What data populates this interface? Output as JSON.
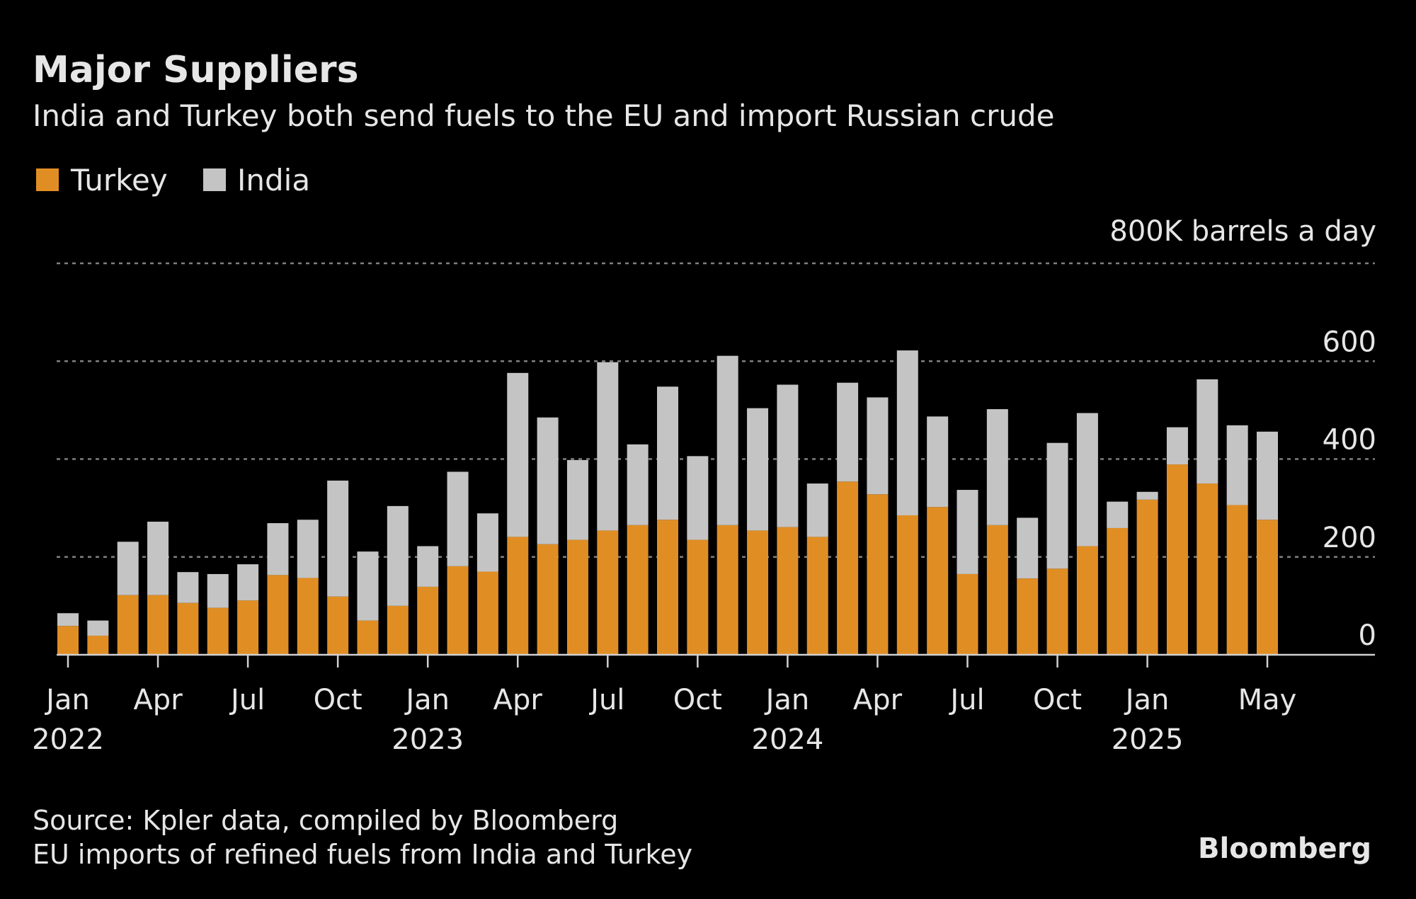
{
  "chart_data": {
    "type": "bar",
    "stacked": true,
    "title": "Major Suppliers",
    "subtitle": "India and Turkey both send fuels to the EU and import Russian crude",
    "ylabel": "800K barrels a day",
    "ylim": [
      0,
      800
    ],
    "yticks": [
      0,
      200,
      400,
      600
    ],
    "grid": true,
    "legend_placement": "top-left",
    "categories": [
      "2022-01",
      "2022-02",
      "2022-03",
      "2022-04",
      "2022-05",
      "2022-06",
      "2022-07",
      "2022-08",
      "2022-09",
      "2022-10",
      "2022-11",
      "2022-12",
      "2023-01",
      "2023-02",
      "2023-03",
      "2023-04",
      "2023-05",
      "2023-06",
      "2023-07",
      "2023-08",
      "2023-09",
      "2023-10",
      "2023-11",
      "2023-12",
      "2024-01",
      "2024-02",
      "2024-03",
      "2024-04",
      "2024-05",
      "2024-06",
      "2024-07",
      "2024-08",
      "2024-09",
      "2024-10",
      "2024-11",
      "2024-12",
      "2025-01",
      "2025-02",
      "2025-03",
      "2025-04",
      "2025-05"
    ],
    "x_tick_labels": [
      {
        "index": 0,
        "month": "Jan",
        "year": "2022"
      },
      {
        "index": 3,
        "month": "Apr"
      },
      {
        "index": 6,
        "month": "Jul"
      },
      {
        "index": 9,
        "month": "Oct"
      },
      {
        "index": 12,
        "month": "Jan",
        "year": "2023"
      },
      {
        "index": 15,
        "month": "Apr"
      },
      {
        "index": 18,
        "month": "Jul"
      },
      {
        "index": 21,
        "month": "Oct"
      },
      {
        "index": 24,
        "month": "Jan",
        "year": "2024"
      },
      {
        "index": 27,
        "month": "Apr"
      },
      {
        "index": 30,
        "month": "Jul"
      },
      {
        "index": 33,
        "month": "Oct"
      },
      {
        "index": 36,
        "month": "Jan",
        "year": "2025"
      },
      {
        "index": 40,
        "month": "May"
      }
    ],
    "series": [
      {
        "name": "Turkey",
        "color": "#e08e24",
        "values": [
          59,
          39,
          122,
          122,
          106,
          96,
          111,
          163,
          157,
          119,
          70,
          100,
          139,
          181,
          170,
          241,
          226,
          235,
          254,
          265,
          276,
          235,
          265,
          254,
          261,
          241,
          354,
          328,
          285,
          302,
          165,
          265,
          156,
          176,
          222,
          259,
          317,
          389,
          350,
          306,
          276
        ]
      },
      {
        "name": "India",
        "color": "#c4c4c4",
        "values": [
          26,
          31,
          109,
          150,
          63,
          69,
          74,
          106,
          119,
          237,
          141,
          204,
          83,
          193,
          119,
          335,
          259,
          163,
          344,
          165,
          272,
          171,
          346,
          250,
          291,
          109,
          202,
          198,
          337,
          185,
          172,
          237,
          124,
          257,
          272,
          54,
          16,
          76,
          213,
          163,
          180
        ]
      }
    ]
  },
  "footer": {
    "source": "Source: Kpler data, compiled by Bloomberg",
    "note": "EU imports of refined fuels from India and Turkey",
    "logo": "Bloomberg"
  },
  "colors": {
    "background": "#000000",
    "text": "#e6e6e6",
    "grid": "#808080"
  }
}
